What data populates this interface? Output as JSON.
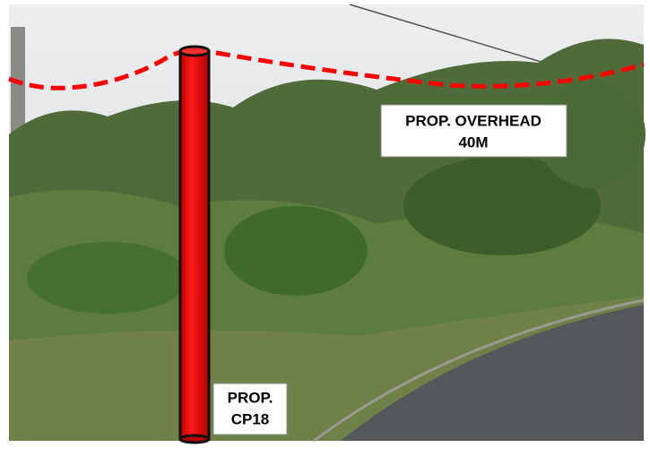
{
  "annotations": [
    {
      "lines": [
        "PROP. OVERHEAD",
        "40M"
      ]
    },
    {
      "lines": [
        "PROP.",
        "CP18"
      ]
    }
  ]
}
